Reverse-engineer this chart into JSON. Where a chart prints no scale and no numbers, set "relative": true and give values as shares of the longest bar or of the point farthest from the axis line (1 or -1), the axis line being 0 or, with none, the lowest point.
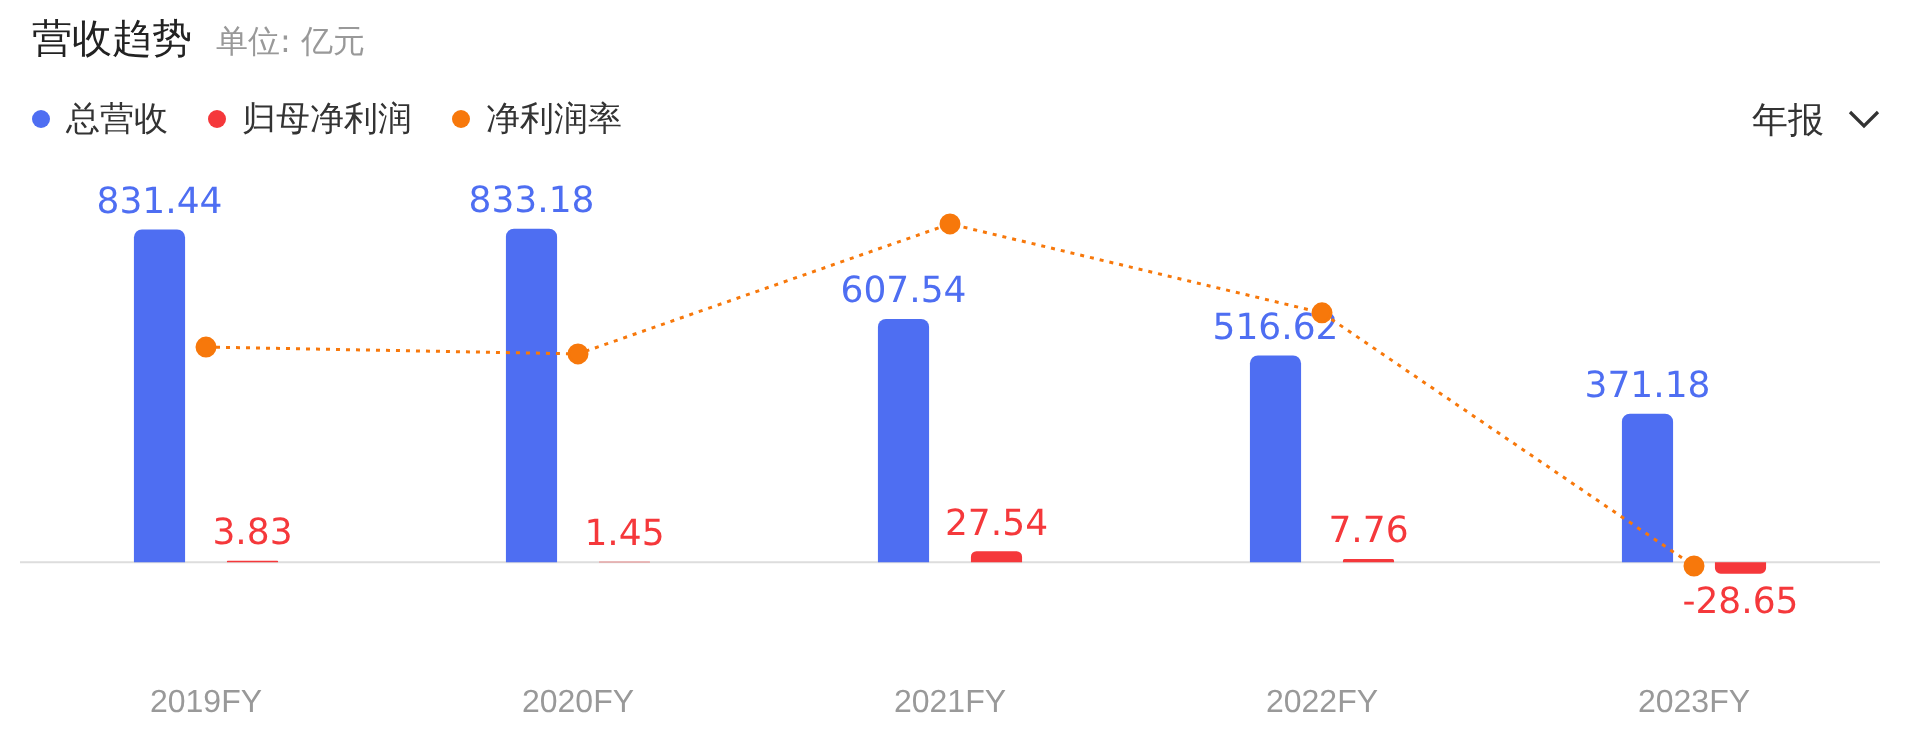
{
  "chart_data": [
    {
      "type": "bar",
      "title": "营收趋势",
      "subtitle": "单位: 亿元",
      "annotations": [
        "年报"
      ],
      "legend": "top left",
      "categories": [
        "2019FY",
        "2020FY",
        "2021FY",
        "2022FY",
        "2023FY"
      ],
      "series": [
        {
          "name": "总营收",
          "color": "#4e6ef2",
          "values": [
            831.44,
            833.18,
            607.54,
            516.62,
            371.18
          ],
          "value_labels": [
            "831.44",
            "833.18",
            "607.54",
            "516.62",
            "371.18"
          ]
        },
        {
          "name": "归母净利润",
          "color": "#f5383b",
          "values": [
            3.83,
            1.45,
            27.54,
            7.76,
            -28.65
          ],
          "value_labels": [
            "3.83",
            "1.45",
            "27.54",
            "7.76",
            "-28.65"
          ]
        }
      ]
    },
    {
      "type": "line",
      "relative": true,
      "legend": "top left",
      "marker": "circle",
      "line_style": "dotted",
      "categories": [
        null,
        null,
        null,
        null,
        null
      ],
      "series": [
        {
          "name": "净利润率",
          "color": "#f7780b",
          "values": [
            0.64,
            0.62,
            1,
            0.74,
            0
          ]
        }
      ]
    }
  ]
}
